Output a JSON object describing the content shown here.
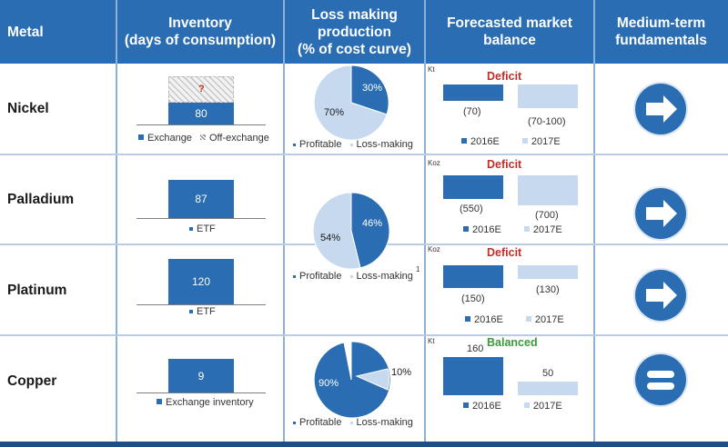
{
  "header": {
    "metal": "Metal",
    "inventory": "Inventory\n(days of consumption)",
    "loss": "Loss making\nproduction\n(% of cost curve)",
    "balance": "Forecasted market\nbalance",
    "fundamentals": "Medium-term\nfundamentals"
  },
  "rows": [
    {
      "metal": "Nickel",
      "inventory": {
        "value": 80,
        "label": "80",
        "unknown": "?",
        "legend": [
          "Exchange",
          "Off-exchange"
        ]
      },
      "pie": {
        "loss_pct": 30,
        "profit_pct": 70,
        "loss_label": "30%",
        "profit_label": "70%",
        "legend": [
          "Profitable",
          "Loss-making"
        ]
      },
      "balance": {
        "unit": "Kt",
        "status": "Deficit",
        "status_color": "#c0302a",
        "values": [
          -70,
          -100
        ],
        "labels": [
          "(70)",
          "(70-100)"
        ],
        "years": [
          "2016E",
          "2017E"
        ]
      },
      "fundamental": "arrow-right-icon"
    },
    {
      "metal": "Palladium",
      "inventory": {
        "value": 87,
        "label": "87",
        "legend": [
          "ETF"
        ]
      },
      "pie": {
        "loss_pct": 46,
        "profit_pct": 54,
        "loss_label": "46%",
        "profit_label": "54%",
        "legend": [
          "Profitable",
          "Loss-making"
        ],
        "footnote": "1"
      },
      "balance": {
        "unit": "Koz",
        "status": "Deficit",
        "status_color": "#c0302a",
        "values": [
          -550,
          -700
        ],
        "labels": [
          "(550)",
          "(700)"
        ],
        "years": [
          "2016E",
          "2017E"
        ]
      },
      "fundamental": "arrow-right-icon"
    },
    {
      "metal": "Platinum",
      "inventory": {
        "value": 120,
        "label": "120",
        "legend": [
          "ETF"
        ]
      },
      "balance": {
        "unit": "Koz",
        "status": "Deficit",
        "status_color": "#c0302a",
        "values": [
          -150,
          -130
        ],
        "labels": [
          "(150)",
          "(130)"
        ],
        "years": [
          "2016E",
          "2017E"
        ]
      },
      "fundamental": "arrow-right-icon"
    },
    {
      "metal": "Copper",
      "inventory": {
        "value": 9,
        "label": "9",
        "legend": [
          "Exchange inventory"
        ]
      },
      "pie": {
        "loss_pct": 10,
        "profit_pct": 90,
        "loss_label": "10%",
        "profit_label": "90%",
        "legend": [
          "Profitable",
          "Loss-making"
        ]
      },
      "balance": {
        "unit": "Kt",
        "status": "Balanced",
        "status_color": "#3a9a3a",
        "values": [
          160,
          50
        ],
        "labels": [
          "160",
          "50"
        ],
        "years": [
          "2016E",
          "2017E"
        ]
      },
      "fundamental": "equals-icon"
    }
  ],
  "chart_data": [
    {
      "type": "bar",
      "title": "Inventory (days of consumption)",
      "categories": [
        "Nickel",
        "Palladium",
        "Platinum",
        "Copper"
      ],
      "values": [
        80,
        87,
        120,
        9
      ]
    },
    {
      "type": "pie",
      "title": "Nickel loss making production",
      "categories": [
        "Profitable",
        "Loss-making"
      ],
      "values": [
        70,
        30
      ]
    },
    {
      "type": "pie",
      "title": "Palladium/Platinum loss making production",
      "categories": [
        "Profitable",
        "Loss-making"
      ],
      "values": [
        54,
        46
      ]
    },
    {
      "type": "pie",
      "title": "Copper loss making production",
      "categories": [
        "Profitable",
        "Loss-making"
      ],
      "values": [
        90,
        10
      ]
    },
    {
      "type": "bar",
      "title": "Nickel forecasted market balance",
      "ylabel": "Kt",
      "categories": [
        "2016E",
        "2017E"
      ],
      "values": [
        -70,
        -100
      ]
    },
    {
      "type": "bar",
      "title": "Palladium forecasted market balance",
      "ylabel": "Koz",
      "categories": [
        "2016E",
        "2017E"
      ],
      "values": [
        -550,
        -700
      ]
    },
    {
      "type": "bar",
      "title": "Platinum forecasted market balance",
      "ylabel": "Koz",
      "categories": [
        "2016E",
        "2017E"
      ],
      "values": [
        -150,
        -130
      ]
    },
    {
      "type": "bar",
      "title": "Copper forecasted market balance",
      "ylabel": "Kt",
      "categories": [
        "2016E",
        "2017E"
      ],
      "values": [
        160,
        50
      ]
    }
  ],
  "colors": {
    "accent": "#2a6db3",
    "light": "#c6d9ef",
    "deficit": "#c0302a",
    "balanced": "#3a9a3a"
  }
}
